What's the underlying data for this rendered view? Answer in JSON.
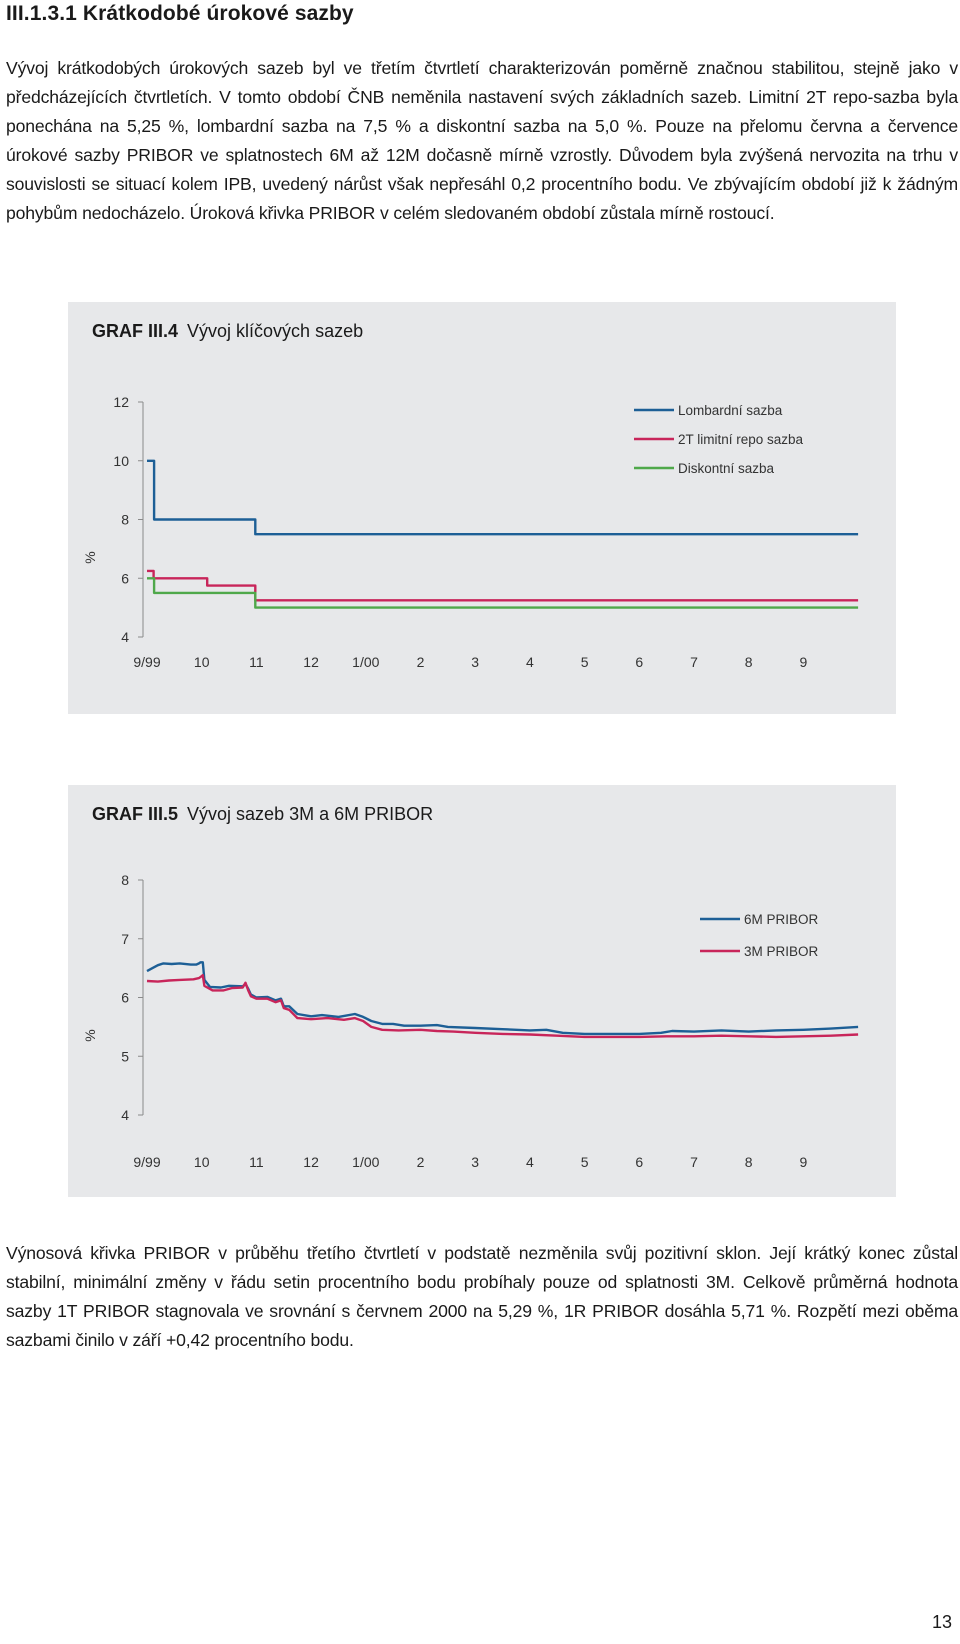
{
  "heading": "III.1.3.1 Krátkodobé úrokové sazby",
  "paragraph1": "Vývoj krátkodobých úrokových sazeb byl ve třetím čtvrtletí charakterizován poměrně značnou stabilitou, stejně jako v předcházejících čtvrtletích. V tomto období ČNB neměnila nastavení svých základních sazeb. Limitní 2T repo-sazba byla ponechána na 5,25 %, lombardní sazba na 7,5 % a diskontní sazba na 5,0 %. Pouze na přelomu června a července úrokové sazby PRIBOR ve splatnostech 6M až 12M dočasně mírně vzrostly. Důvodem byla zvýšená nervozita na trhu v souvislosti se situací kolem IPB, uvedený nárůst však nepřesáhl 0,2 procentního bodu. Ve zbývajícím období již k žádným pohybům nedocházelo. Úroková křivka PRIBOR v celém sledovaném období zůstala mírně rostoucí.",
  "paragraph2": "Výnosová křivka PRIBOR v průběhu třetího čtvrtletí v podstatě nezměnila svůj pozitivní sklon. Její krátký konec zůstal stabilní, minimální změny v řádu setin procentního bodu probíhaly pouze od splatnosti 3M. Celkově průměrná hodnota sazby 1T PRIBOR stagnovala ve srovnání s červnem 2000 na 5,29 %, 1R PRIBOR dosáhla 5,71 %. Rozpětí mezi oběma sazbami činilo v září +0,42 procentního bodu.",
  "page_number": "13",
  "colors": {
    "blue": "#1d5f96",
    "red": "#c8255a",
    "green": "#4fa84a",
    "panel": "#e7e8ea"
  },
  "chart_data": [
    {
      "type": "line",
      "title_bold": "GRAF III.4",
      "title": "Vývoj klíčových sazeb",
      "ylabel": "%",
      "ylim": [
        4,
        12
      ],
      "yticks": [
        "4",
        "6",
        "8",
        "10",
        "12"
      ],
      "categories": [
        "9/99",
        "10",
        "11",
        "12",
        "1/00",
        "2",
        "3",
        "4",
        "5",
        "6",
        "7",
        "8",
        "9"
      ],
      "series": [
        {
          "name": "Lombardní sazba",
          "color": "#1d5f96",
          "points": [
            [
              0,
              10.0
            ],
            [
              0.13,
              10.0
            ],
            [
              0.13,
              8.0
            ],
            [
              1.98,
              8.0
            ],
            [
              1.98,
              7.5
            ],
            [
              13.0,
              7.5
            ]
          ]
        },
        {
          "name": "2T limitní repo sazba",
          "color": "#c8255a",
          "points": [
            [
              0,
              6.25
            ],
            [
              0.12,
              6.25
            ],
            [
              0.12,
              6.0
            ],
            [
              1.1,
              6.0
            ],
            [
              1.1,
              5.75
            ],
            [
              1.98,
              5.75
            ],
            [
              1.98,
              5.25
            ],
            [
              13.0,
              5.25
            ]
          ]
        },
        {
          "name": "Diskontní sazba",
          "color": "#4fa84a",
          "points": [
            [
              0,
              6.0
            ],
            [
              0.13,
              6.0
            ],
            [
              0.13,
              5.5
            ],
            [
              1.98,
              5.5
            ],
            [
              1.98,
              5.0
            ],
            [
              13.0,
              5.0
            ]
          ]
        }
      ]
    },
    {
      "type": "line",
      "title_bold": "GRAF III.5",
      "title": "Vývoj sazeb 3M a 6M PRIBOR",
      "ylabel": "%",
      "ylim": [
        4,
        8
      ],
      "yticks": [
        "4",
        "5",
        "6",
        "7",
        "8"
      ],
      "categories": [
        "9/99",
        "10",
        "11",
        "12",
        "1/00",
        "2",
        "3",
        "4",
        "5",
        "6",
        "7",
        "8",
        "9"
      ],
      "series": [
        {
          "name": "6M PRIBOR",
          "color": "#1d5f96",
          "points": [
            [
              0,
              6.45
            ],
            [
              0.1,
              6.5
            ],
            [
              0.2,
              6.55
            ],
            [
              0.3,
              6.58
            ],
            [
              0.45,
              6.57
            ],
            [
              0.6,
              6.58
            ],
            [
              0.8,
              6.56
            ],
            [
              0.9,
              6.56
            ],
            [
              0.95,
              6.58
            ],
            [
              0.98,
              6.6
            ],
            [
              1.02,
              6.6
            ],
            [
              1.05,
              6.3
            ],
            [
              1.15,
              6.18
            ],
            [
              1.35,
              6.17
            ],
            [
              1.5,
              6.2
            ],
            [
              1.75,
              6.19
            ],
            [
              1.8,
              6.23
            ],
            [
              1.85,
              6.15
            ],
            [
              1.9,
              6.05
            ],
            [
              2.0,
              6.0
            ],
            [
              2.2,
              6.01
            ],
            [
              2.35,
              5.95
            ],
            [
              2.45,
              5.98
            ],
            [
              2.5,
              5.85
            ],
            [
              2.6,
              5.85
            ],
            [
              2.75,
              5.72
            ],
            [
              3.0,
              5.68
            ],
            [
              3.2,
              5.7
            ],
            [
              3.5,
              5.67
            ],
            [
              3.8,
              5.72
            ],
            [
              3.95,
              5.67
            ],
            [
              4.1,
              5.6
            ],
            [
              4.3,
              5.55
            ],
            [
              4.5,
              5.55
            ],
            [
              4.7,
              5.52
            ],
            [
              5.0,
              5.52
            ],
            [
              5.3,
              5.53
            ],
            [
              5.5,
              5.5
            ],
            [
              6.0,
              5.48
            ],
            [
              6.5,
              5.46
            ],
            [
              7.0,
              5.44
            ],
            [
              7.3,
              5.45
            ],
            [
              7.6,
              5.4
            ],
            [
              8.0,
              5.38
            ],
            [
              8.4,
              5.38
            ],
            [
              9.0,
              5.38
            ],
            [
              9.4,
              5.4
            ],
            [
              9.6,
              5.43
            ],
            [
              10.0,
              5.42
            ],
            [
              10.5,
              5.44
            ],
            [
              11.0,
              5.42
            ],
            [
              11.5,
              5.44
            ],
            [
              12.0,
              5.45
            ],
            [
              12.5,
              5.47
            ],
            [
              13.0,
              5.5
            ]
          ]
        },
        {
          "name": "3M PRIBOR",
          "color": "#c8255a",
          "points": [
            [
              0,
              6.28
            ],
            [
              0.2,
              6.27
            ],
            [
              0.4,
              6.29
            ],
            [
              0.6,
              6.3
            ],
            [
              0.85,
              6.31
            ],
            [
              0.95,
              6.33
            ],
            [
              0.98,
              6.35
            ],
            [
              1.02,
              6.38
            ],
            [
              1.05,
              6.2
            ],
            [
              1.2,
              6.12
            ],
            [
              1.4,
              6.12
            ],
            [
              1.55,
              6.16
            ],
            [
              1.75,
              6.17
            ],
            [
              1.8,
              6.25
            ],
            [
              1.85,
              6.12
            ],
            [
              1.9,
              6.02
            ],
            [
              2.0,
              5.98
            ],
            [
              2.2,
              5.98
            ],
            [
              2.35,
              5.92
            ],
            [
              2.45,
              5.95
            ],
            [
              2.5,
              5.82
            ],
            [
              2.6,
              5.79
            ],
            [
              2.75,
              5.65
            ],
            [
              3.0,
              5.63
            ],
            [
              3.3,
              5.65
            ],
            [
              3.6,
              5.62
            ],
            [
              3.8,
              5.65
            ],
            [
              3.95,
              5.6
            ],
            [
              4.1,
              5.5
            ],
            [
              4.3,
              5.45
            ],
            [
              4.6,
              5.44
            ],
            [
              5.0,
              5.45
            ],
            [
              5.3,
              5.43
            ],
            [
              5.6,
              5.42
            ],
            [
              6.0,
              5.4
            ],
            [
              6.5,
              5.38
            ],
            [
              7.0,
              5.37
            ],
            [
              7.5,
              5.35
            ],
            [
              8.0,
              5.33
            ],
            [
              8.5,
              5.33
            ],
            [
              9.0,
              5.33
            ],
            [
              9.5,
              5.34
            ],
            [
              10.0,
              5.34
            ],
            [
              10.5,
              5.35
            ],
            [
              11.0,
              5.34
            ],
            [
              11.5,
              5.33
            ],
            [
              12.0,
              5.34
            ],
            [
              12.5,
              5.35
            ],
            [
              13.0,
              5.37
            ]
          ]
        }
      ]
    }
  ]
}
